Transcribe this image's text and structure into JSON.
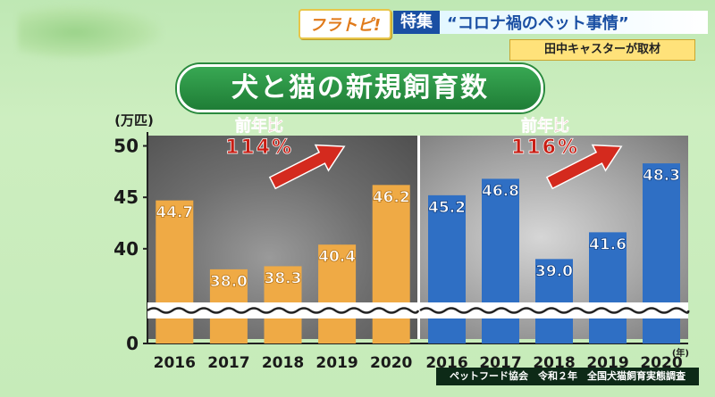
{
  "header": {
    "show_tag": "フラトピ!",
    "special_label": "特集",
    "special_title": "“コロナ禍のペット事情”",
    "reporter": "田中キャスターが取材"
  },
  "title": "犬と猫の新規飼育数",
  "source": "ペットフード協会　令和２年　全国犬猫飼育実態調査",
  "colors": {
    "dog_bar": "#efaa45",
    "cat_bar": "#2f6fc4",
    "arrow": "#d42a1e",
    "yoy_text": "#c81e14"
  },
  "chart_data": [
    {
      "type": "bar",
      "categories": [
        "2016",
        "2017",
        "2018",
        "2019",
        "2020"
      ],
      "values": [
        44.7,
        38.0,
        38.3,
        40.4,
        46.2
      ],
      "value_labels": [
        "44.7",
        "38.0",
        "38.3",
        "40.4",
        "46.2"
      ],
      "ylabel": "(万匹)",
      "yticks": [
        "0",
        "40",
        "45",
        "50"
      ],
      "axis_break": true,
      "ylim": [
        34,
        51
      ],
      "annotation": {
        "label": "前年比",
        "value": "114%"
      }
    },
    {
      "type": "bar",
      "categories": [
        "2016",
        "2017",
        "2018",
        "2019",
        "2020"
      ],
      "values": [
        45.2,
        46.8,
        39.0,
        41.6,
        48.3
      ],
      "value_labels": [
        "45.2",
        "46.8",
        "39.0",
        "41.6",
        "48.3"
      ],
      "x_unit": "(年)",
      "axis_break": true,
      "ylim": [
        34,
        51
      ],
      "annotation": {
        "label": "前年比",
        "value": "116%"
      }
    }
  ]
}
